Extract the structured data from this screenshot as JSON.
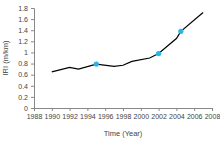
{
  "chart_data": {
    "type": "line",
    "x_label": "Time (Year)",
    "y_label": "IRI (m/km)",
    "x": [
      1990,
      1992,
      1993,
      1995,
      1997,
      1998,
      1999,
      2001,
      2002,
      2004,
      2004.5,
      2007
    ],
    "series": [
      {
        "type": "line",
        "color": "#000000",
        "line_style": "solid",
        "values": [
          0.65,
          0.73,
          0.7,
          0.79,
          0.75,
          0.77,
          0.84,
          0.9,
          0.98,
          1.25,
          1.38,
          1.72
        ]
      },
      {
        "type": "scatter",
        "color": "#29b6e6",
        "marker": "circle",
        "values": [
          null,
          null,
          null,
          0.79,
          null,
          null,
          null,
          null,
          0.98,
          null,
          1.38,
          null
        ]
      }
    ],
    "xlim": [
      1988,
      2008
    ],
    "xticks": [
      1988,
      1990,
      1992,
      1994,
      1996,
      1998,
      2000,
      2002,
      2004,
      2006,
      2008
    ],
    "ylim": [
      0,
      1.8
    ],
    "yticks": [
      0,
      0.2,
      0.4,
      0.6,
      0.8,
      1,
      1.2,
      1.4,
      1.6,
      1.8
    ],
    "grid": false
  }
}
